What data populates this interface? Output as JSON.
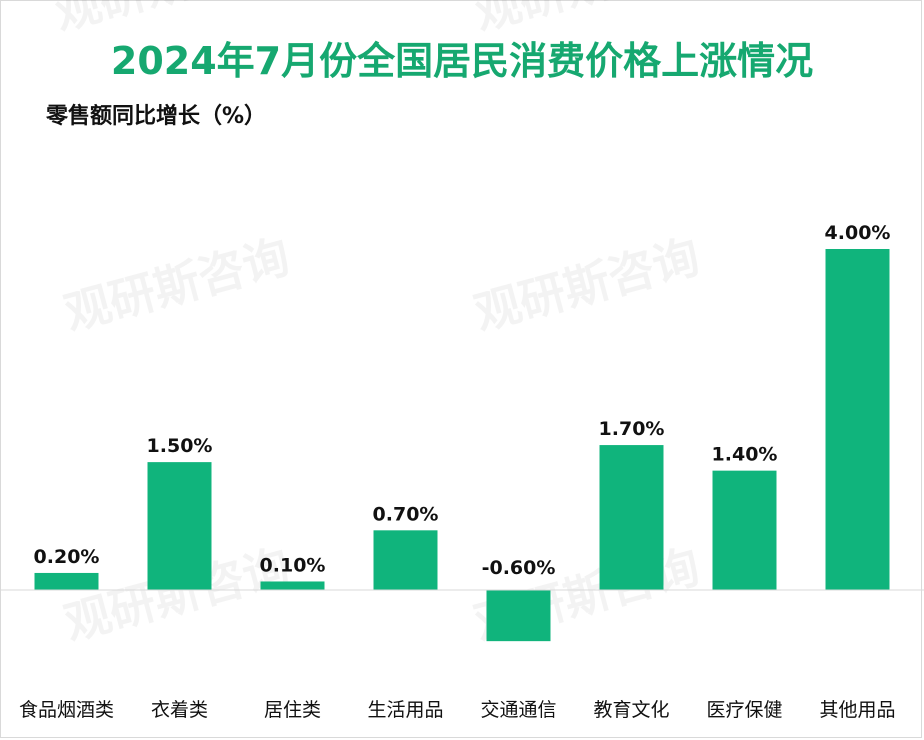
{
  "chart_data": {
    "type": "bar",
    "title": "2024年7月份全国居民消费价格上涨情况",
    "ylabel": "零售额同比增长（%）",
    "xlabel": "",
    "categories": [
      "食品烟酒类",
      "衣着类",
      "居住类",
      "生活用品",
      "交通通信",
      "教育文化",
      "医疗保健",
      "其他用品"
    ],
    "values": [
      0.2,
      1.5,
      0.1,
      0.7,
      -0.6,
      1.7,
      1.4,
      4.0
    ],
    "value_labels": [
      "0.20%",
      "1.50%",
      "0.10%",
      "0.70%",
      "-0.60%",
      "1.70%",
      "1.40%",
      "4.00%"
    ],
    "ylim": [
      -0.6,
      4.0
    ],
    "grid": false,
    "legend": "none",
    "bar_color": "#10b47c",
    "title_color": "#16a870",
    "watermark": "观研斯咨询"
  }
}
